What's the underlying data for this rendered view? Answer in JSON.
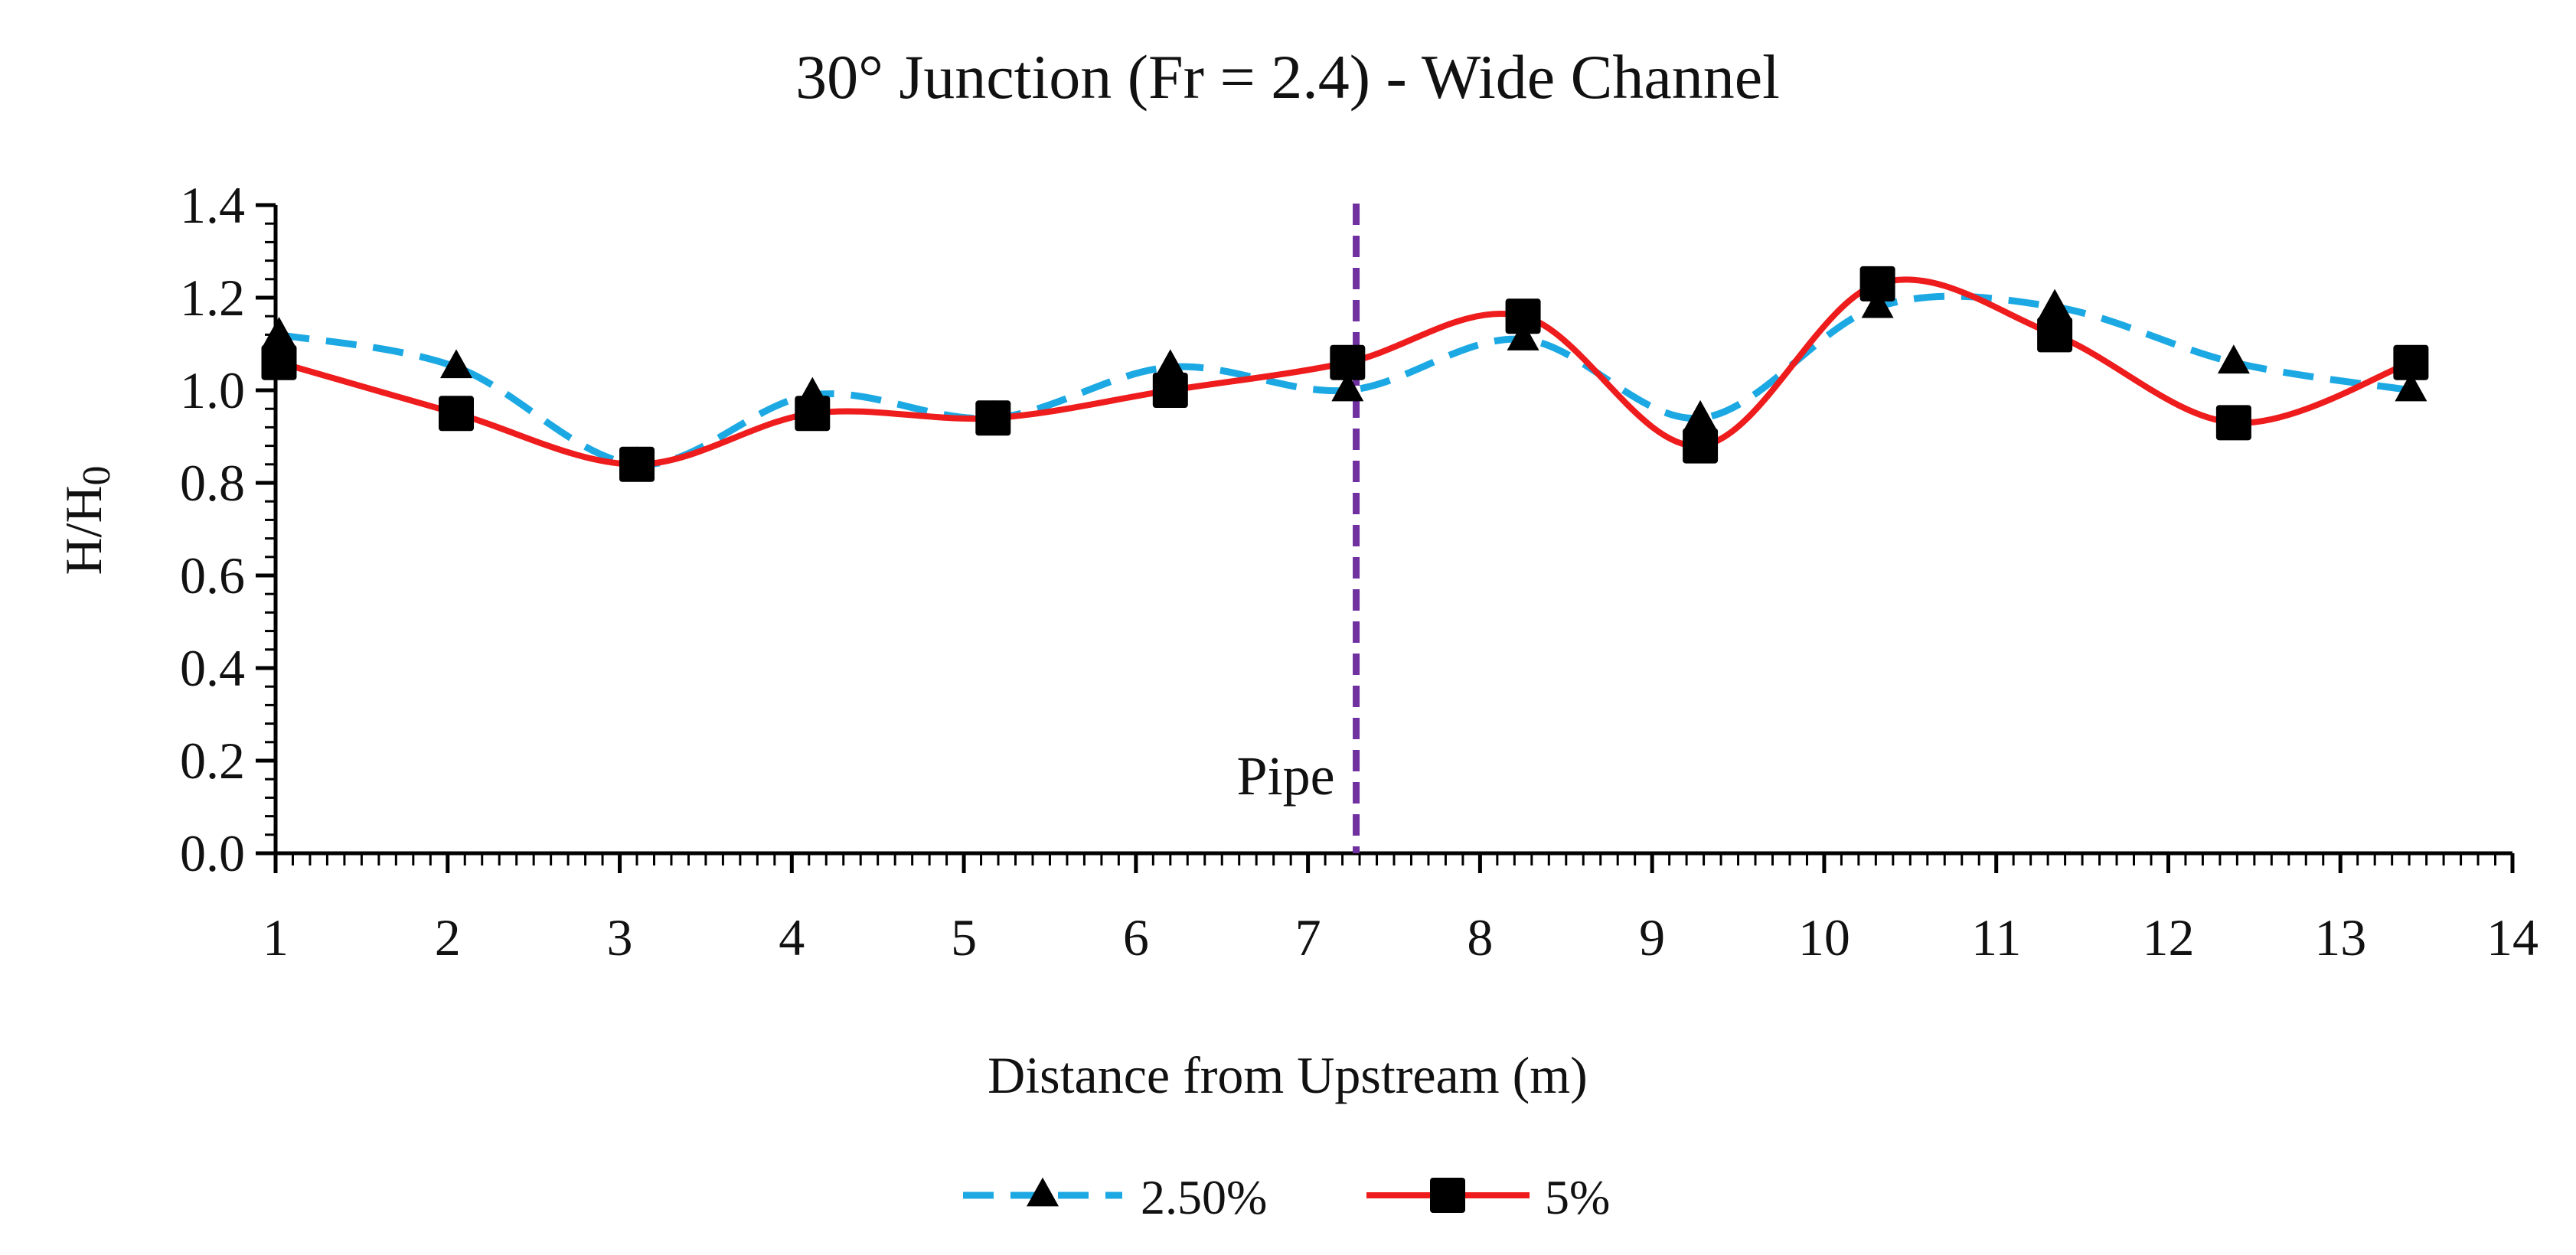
{
  "chart_data": {
    "type": "line",
    "title": "30° Junction (Fr = 2.4) - Wide Channel",
    "xlabel": "Distance from Upstream (m)",
    "ylabel": "H/H",
    "ylabel_subscript": "0",
    "xlim": [
      1,
      14
    ],
    "ylim": [
      0,
      1.4
    ],
    "x_ticks": [
      "1",
      "2",
      "3",
      "4",
      "5",
      "6",
      "7",
      "8",
      "9",
      "10",
      "11",
      "12",
      "13",
      "14"
    ],
    "y_ticks": [
      "0.0",
      "0.2",
      "0.4",
      "0.6",
      "0.8",
      "1.0",
      "1.2",
      "1.4"
    ],
    "grid": false,
    "legend_position": "bottom",
    "series": [
      {
        "name": "2.50%",
        "color": "#1ca9e3",
        "line_style": "dashed",
        "marker": "triangle",
        "x": [
          1.02,
          2.05,
          3.1,
          4.12,
          5.17,
          6.2,
          7.23,
          8.25,
          9.28,
          10.31,
          11.34,
          12.38,
          13.41
        ],
        "y": [
          1.12,
          1.05,
          0.84,
          0.99,
          0.94,
          1.05,
          1.0,
          1.11,
          0.94,
          1.18,
          1.18,
          1.06,
          1.0
        ]
      },
      {
        "name": "5%",
        "color": "#ee1c1c",
        "line_style": "solid",
        "marker": "square",
        "x": [
          1.02,
          2.05,
          3.1,
          4.12,
          5.17,
          6.2,
          7.23,
          8.25,
          9.28,
          10.31,
          11.34,
          12.38,
          13.41
        ],
        "y": [
          1.06,
          0.95,
          0.84,
          0.95,
          0.94,
          1.0,
          1.06,
          1.16,
          0.88,
          1.23,
          1.12,
          0.93,
          1.06
        ]
      }
    ],
    "annotations": [
      {
        "type": "vertical-line",
        "x": 7.28,
        "color": "#7030a0",
        "line_style": "dashed",
        "label": "Pipe"
      }
    ]
  }
}
